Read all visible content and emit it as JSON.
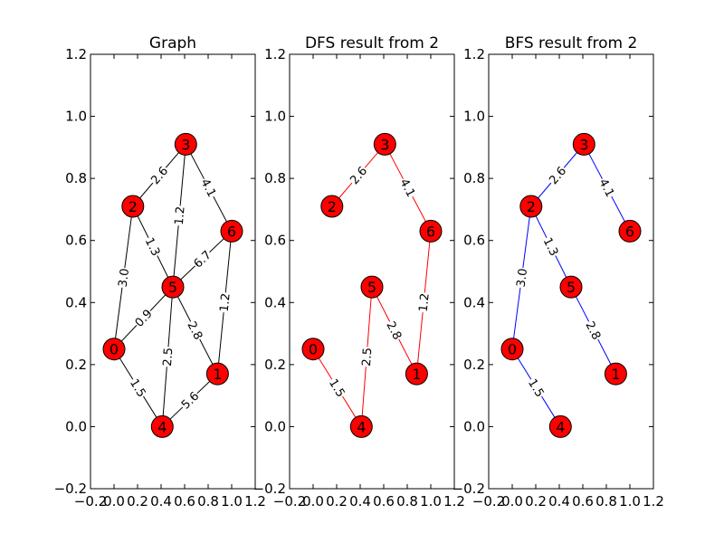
{
  "chart_data": [
    {
      "type": "graph",
      "title": "Graph",
      "xlim": [
        -0.2,
        1.2
      ],
      "ylim": [
        -0.2,
        1.2
      ],
      "edge_color": "#000000",
      "node_color": "#ff0000",
      "x_ticks": [
        "−0.2",
        "0.0",
        "0.2",
        "0.4",
        "0.6",
        "0.8",
        "1.0",
        "1.2"
      ],
      "y_ticks": [
        "−0.2",
        "0.0",
        "0.2",
        "0.4",
        "0.6",
        "0.8",
        "1.0",
        "1.2"
      ],
      "nodes": [
        {
          "id": "0",
          "x": 0.0,
          "y": 0.25
        },
        {
          "id": "1",
          "x": 0.88,
          "y": 0.17
        },
        {
          "id": "2",
          "x": 0.16,
          "y": 0.71
        },
        {
          "id": "3",
          "x": 0.61,
          "y": 0.91
        },
        {
          "id": "4",
          "x": 0.41,
          "y": 0.0
        },
        {
          "id": "5",
          "x": 0.5,
          "y": 0.45
        },
        {
          "id": "6",
          "x": 1.0,
          "y": 0.63
        }
      ],
      "edges": [
        {
          "source": "2",
          "target": "3",
          "label": "2.6"
        },
        {
          "source": "3",
          "target": "6",
          "label": "4.1"
        },
        {
          "source": "3",
          "target": "5",
          "label": "1.2"
        },
        {
          "source": "2",
          "target": "5",
          "label": "1.3"
        },
        {
          "source": "2",
          "target": "0",
          "label": "3.0"
        },
        {
          "source": "5",
          "target": "6",
          "label": "6.7"
        },
        {
          "source": "0",
          "target": "5",
          "label": "0.9"
        },
        {
          "source": "6",
          "target": "1",
          "label": "1.2"
        },
        {
          "source": "5",
          "target": "1",
          "label": "2.8"
        },
        {
          "source": "5",
          "target": "4",
          "label": "2.5"
        },
        {
          "source": "0",
          "target": "4",
          "label": "1.5"
        },
        {
          "source": "4",
          "target": "1",
          "label": "5.6"
        }
      ]
    },
    {
      "type": "graph",
      "title": "DFS result from 2",
      "xlim": [
        -0.2,
        1.2
      ],
      "ylim": [
        -0.2,
        1.2
      ],
      "edge_color": "#ff0000",
      "node_color": "#ff0000",
      "x_ticks": [
        "−0.2",
        "0.0",
        "0.2",
        "0.4",
        "0.6",
        "0.8",
        "1.0",
        "1.2"
      ],
      "y_ticks": [
        "−0.2",
        "0.0",
        "0.2",
        "0.4",
        "0.6",
        "0.8",
        "1.0",
        "1.2"
      ],
      "nodes": [
        {
          "id": "0",
          "x": 0.0,
          "y": 0.25
        },
        {
          "id": "1",
          "x": 0.88,
          "y": 0.17
        },
        {
          "id": "2",
          "x": 0.16,
          "y": 0.71
        },
        {
          "id": "3",
          "x": 0.61,
          "y": 0.91
        },
        {
          "id": "4",
          "x": 0.41,
          "y": 0.0
        },
        {
          "id": "5",
          "x": 0.5,
          "y": 0.45
        },
        {
          "id": "6",
          "x": 1.0,
          "y": 0.63
        }
      ],
      "edges": [
        {
          "source": "2",
          "target": "3",
          "label": "2.6"
        },
        {
          "source": "3",
          "target": "6",
          "label": "4.1"
        },
        {
          "source": "6",
          "target": "1",
          "label": "1.2"
        },
        {
          "source": "5",
          "target": "1",
          "label": "2.8"
        },
        {
          "source": "5",
          "target": "4",
          "label": "2.5"
        },
        {
          "source": "0",
          "target": "4",
          "label": "1.5"
        }
      ]
    },
    {
      "type": "graph",
      "title": "BFS result from 2",
      "xlim": [
        -0.2,
        1.2
      ],
      "ylim": [
        -0.2,
        1.2
      ],
      "edge_color": "#0000ff",
      "node_color": "#ff0000",
      "x_ticks": [
        "−0.2",
        "0.0",
        "0.2",
        "0.4",
        "0.6",
        "0.8",
        "1.0",
        "1.2"
      ],
      "y_ticks": [
        "−0.2",
        "0.0",
        "0.2",
        "0.4",
        "0.6",
        "0.8",
        "1.0",
        "1.2"
      ],
      "nodes": [
        {
          "id": "0",
          "x": 0.0,
          "y": 0.25
        },
        {
          "id": "1",
          "x": 0.88,
          "y": 0.17
        },
        {
          "id": "2",
          "x": 0.16,
          "y": 0.71
        },
        {
          "id": "3",
          "x": 0.61,
          "y": 0.91
        },
        {
          "id": "4",
          "x": 0.41,
          "y": 0.0
        },
        {
          "id": "5",
          "x": 0.5,
          "y": 0.45
        },
        {
          "id": "6",
          "x": 1.0,
          "y": 0.63
        }
      ],
      "edges": [
        {
          "source": "2",
          "target": "3",
          "label": "2.6"
        },
        {
          "source": "3",
          "target": "6",
          "label": "4.1"
        },
        {
          "source": "2",
          "target": "5",
          "label": "1.3"
        },
        {
          "source": "2",
          "target": "0",
          "label": "3.0"
        },
        {
          "source": "5",
          "target": "1",
          "label": "2.8"
        },
        {
          "source": "0",
          "target": "4",
          "label": "1.5"
        }
      ]
    }
  ]
}
